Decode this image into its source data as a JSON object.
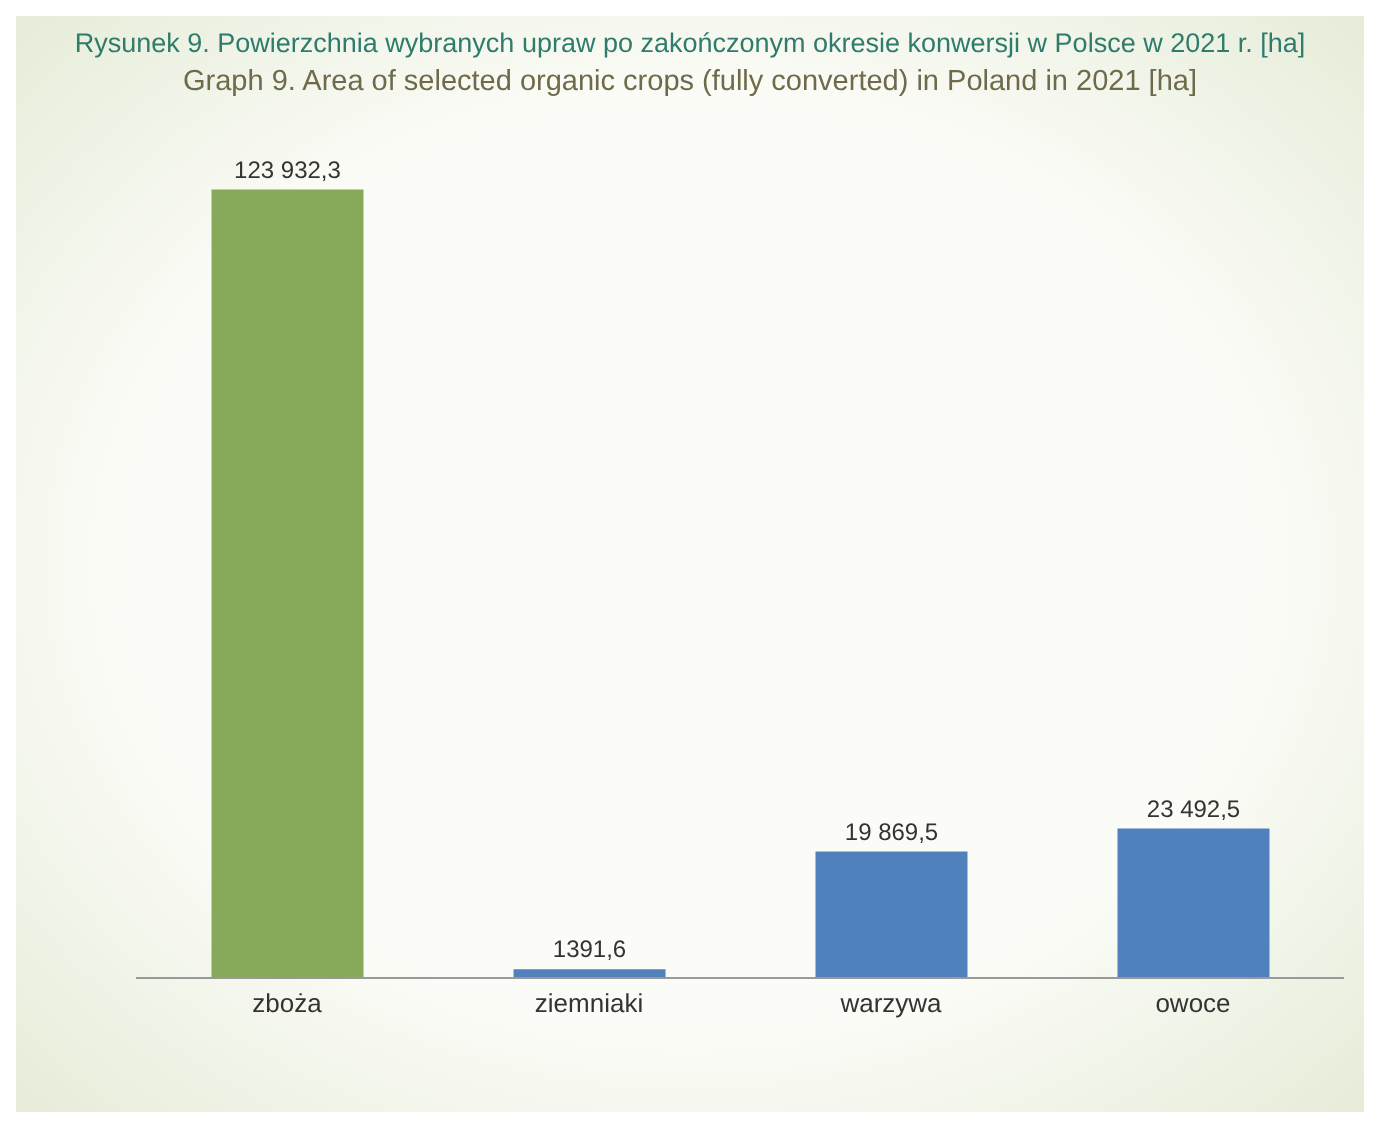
{
  "chart_data": {
    "type": "bar",
    "title": "Rysunek 9. Powierzchnia wybranych upraw po zakończonym okresie konwersji w Polsce w 2021 r. [ha]",
    "subtitle": "Graph 9. Area of selected organic crops (fully converted) in Poland in 2021 [ha]",
    "categories": [
      "zboża",
      "ziemniaki",
      "warzywa",
      "owoce"
    ],
    "values": [
      123932.3,
      1391.6,
      19869.5,
      23492.5
    ],
    "colors": [
      "#87a95a",
      "#4f81bd",
      "#4f81bd",
      "#4f81bd"
    ],
    "value_labels": [
      "123 932,3",
      "1391,6",
      "19 869,5",
      "23 492,5"
    ],
    "grid": false,
    "legend": false
  }
}
